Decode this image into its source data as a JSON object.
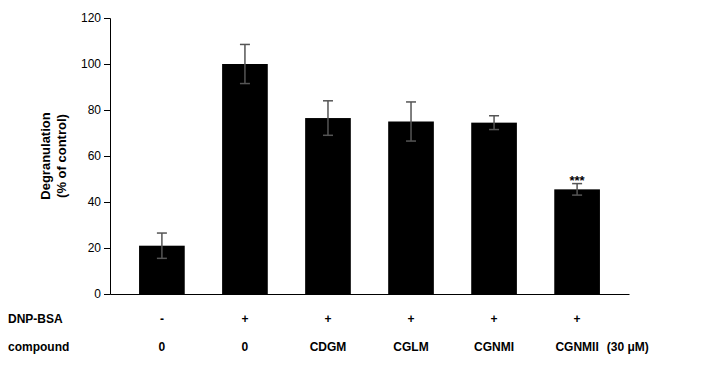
{
  "chart_data": {
    "type": "bar",
    "categories": [
      "0",
      "0",
      "CDGM",
      "CGLM",
      "CGNMI",
      "CGNMII"
    ],
    "category_label": "compound",
    "category_note": "(30 μM)",
    "treatment_label": "DNP-BSA",
    "treatment_values": [
      "-",
      "+",
      "+",
      "+",
      "+",
      "+"
    ],
    "values": [
      21.0,
      100.0,
      76.5,
      75.0,
      74.5,
      45.5
    ],
    "errors": [
      5.5,
      8.5,
      7.5,
      8.5,
      3.0,
      2.5
    ],
    "color": "#000000",
    "ylabel": "Degranulation\n(% of control)",
    "ylim": [
      0,
      120
    ],
    "yticks": [
      0,
      20,
      40,
      60,
      80,
      100,
      120
    ],
    "annotations": [
      {
        "text": "***",
        "x": 5,
        "y": 47.5
      }
    ],
    "grid": false
  }
}
